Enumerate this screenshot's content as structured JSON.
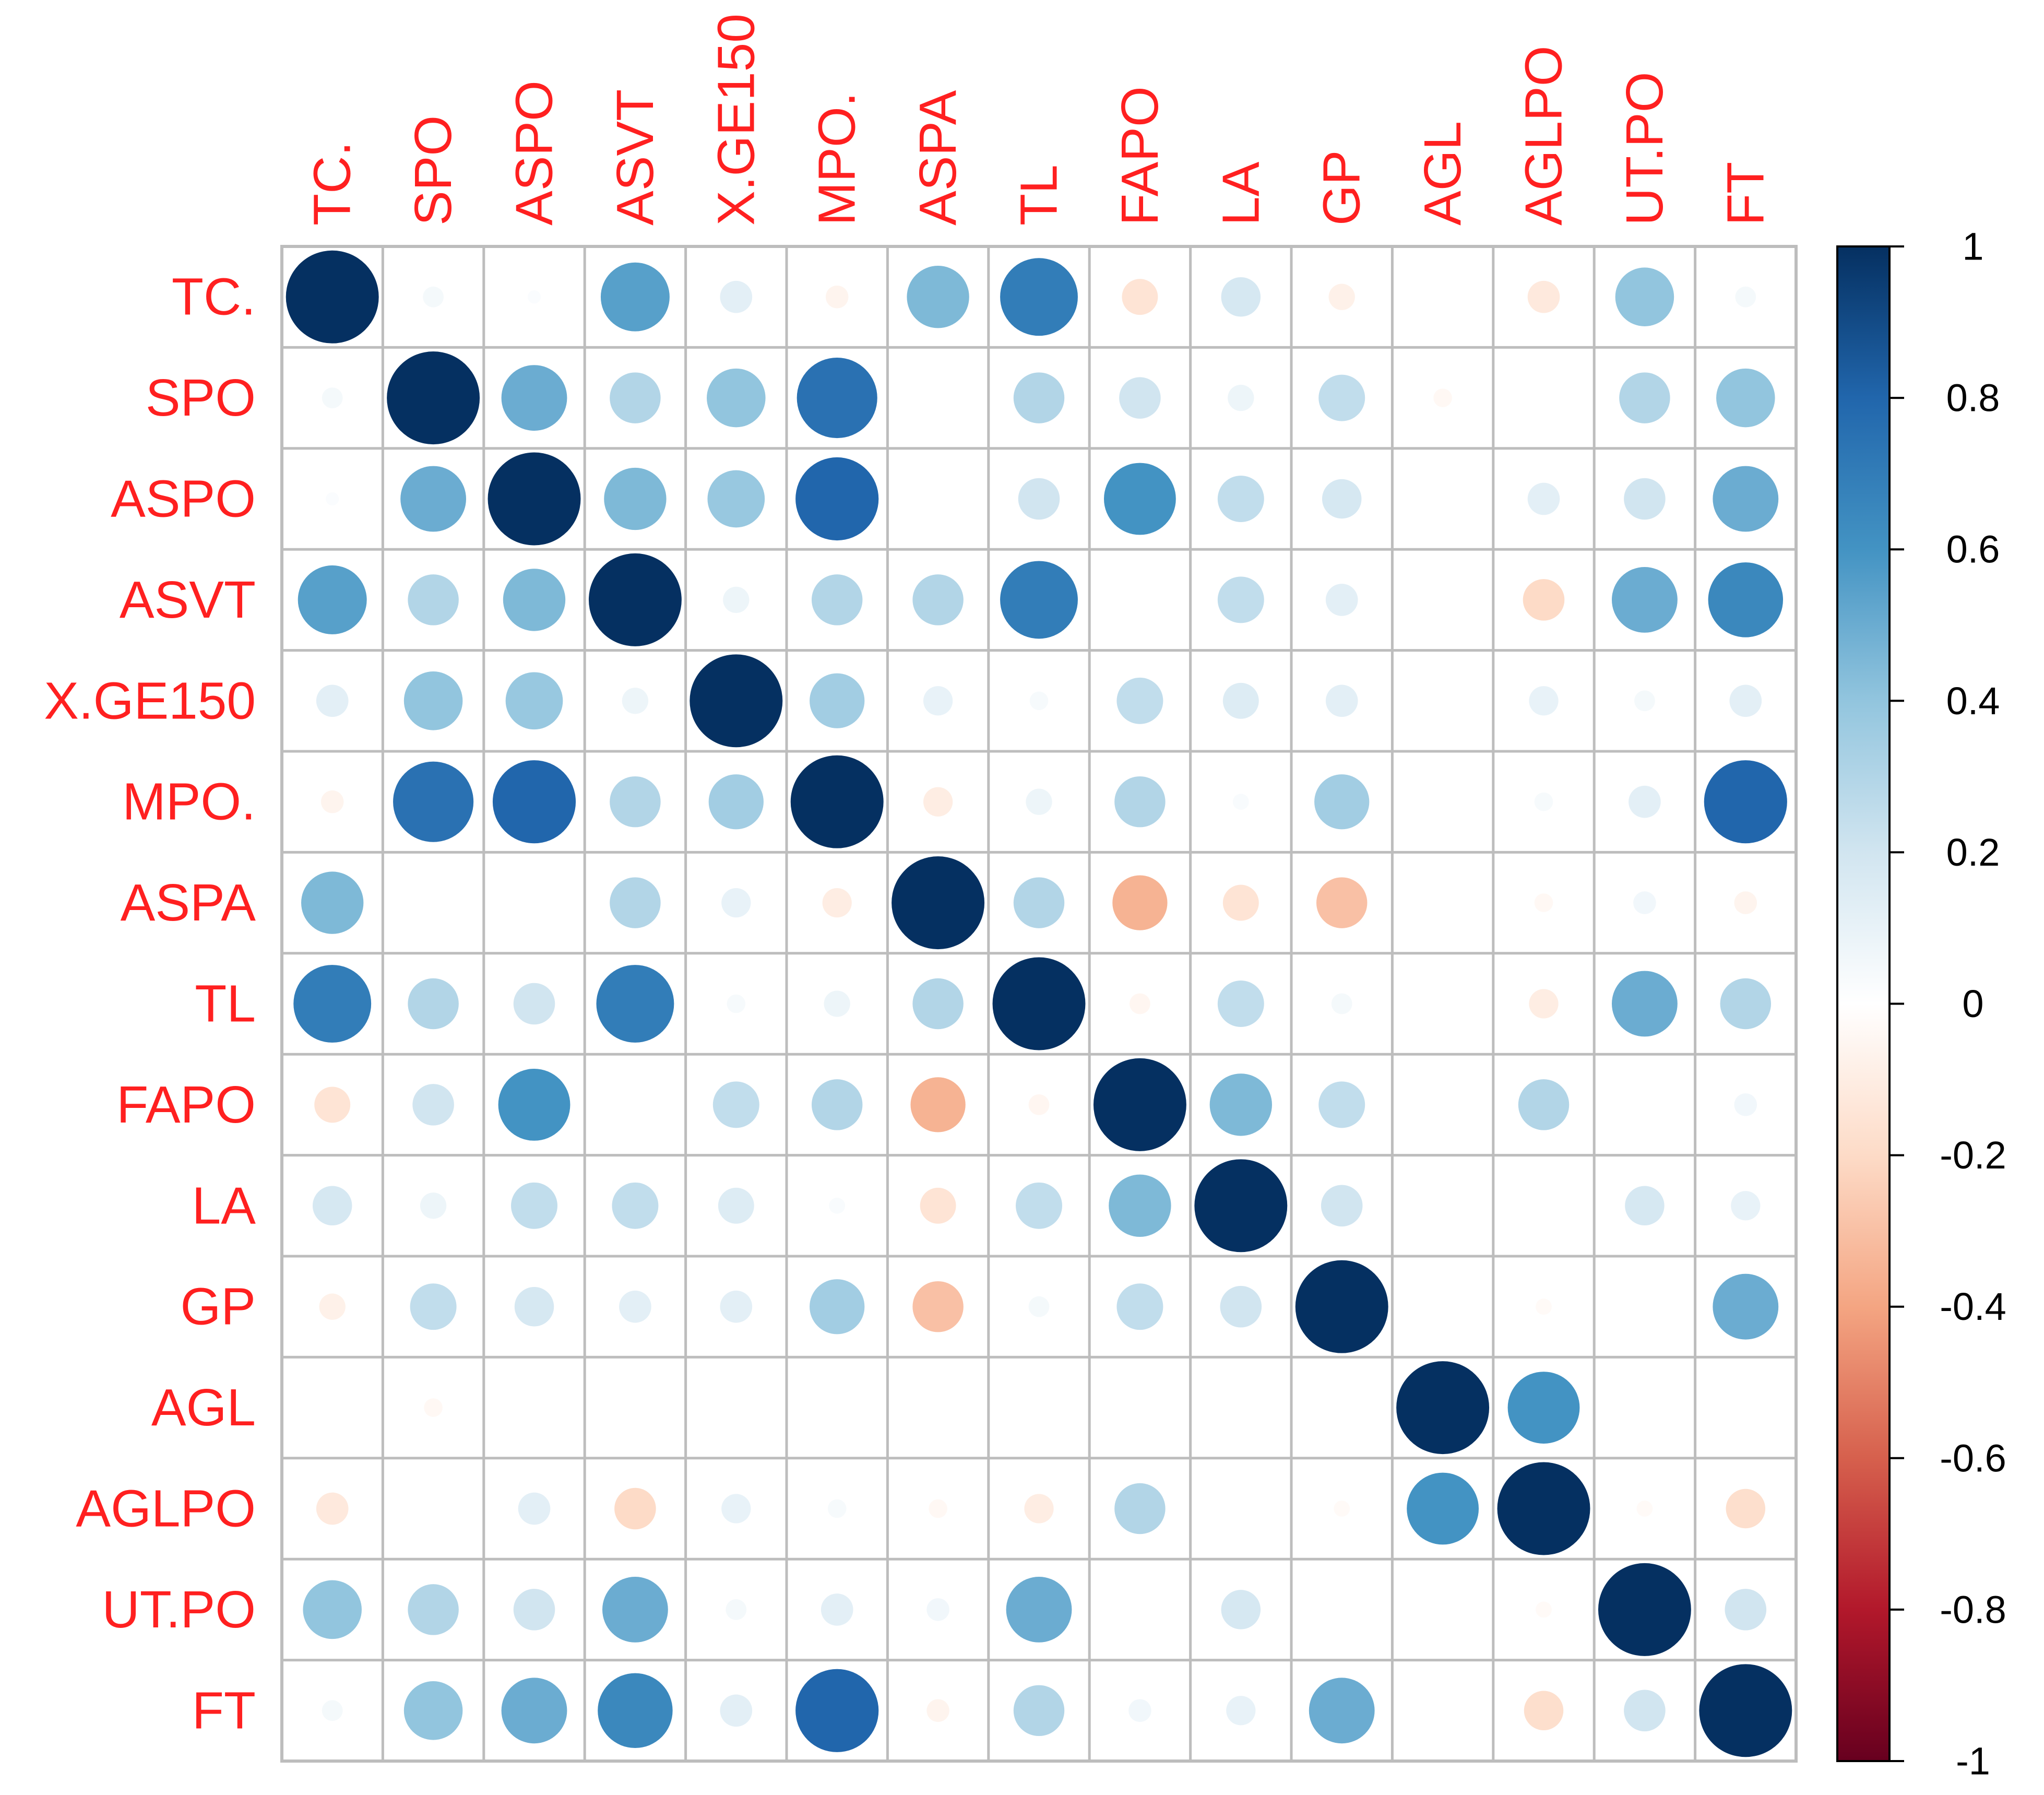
{
  "chart_data": {
    "type": "correlation-matrix",
    "method": "circle",
    "variables": [
      "TC.",
      "SPO",
      "ASPO",
      "ASVT",
      "X.GE150",
      "MPO.",
      "ASPA",
      "TL",
      "FAPO",
      "LA",
      "GP",
      "AGL",
      "AGLPO",
      "UT.PO",
      "FT"
    ],
    "matrix": [
      [
        1.0,
        0.05,
        0.02,
        0.55,
        0.12,
        -0.06,
        0.45,
        0.7,
        -0.15,
        0.18,
        -0.08,
        0.0,
        -0.12,
        0.4,
        0.05
      ],
      [
        0.05,
        1.0,
        0.5,
        0.3,
        0.4,
        0.75,
        0.0,
        0.3,
        0.2,
        0.08,
        0.25,
        -0.04,
        0.0,
        0.3,
        0.4
      ],
      [
        0.02,
        0.5,
        1.0,
        0.45,
        0.38,
        0.8,
        0.0,
        0.2,
        0.6,
        0.25,
        0.18,
        0.0,
        0.12,
        0.2,
        0.5
      ],
      [
        0.55,
        0.3,
        0.45,
        1.0,
        0.08,
        0.3,
        0.3,
        0.7,
        0.0,
        0.25,
        0.12,
        0.0,
        -0.2,
        0.5,
        0.65
      ],
      [
        0.12,
        0.4,
        0.38,
        0.08,
        1.0,
        0.35,
        0.1,
        0.04,
        0.25,
        0.15,
        0.12,
        0.0,
        0.1,
        0.05,
        0.12
      ],
      [
        -0.06,
        0.75,
        0.8,
        0.3,
        0.35,
        1.0,
        -0.1,
        0.08,
        0.3,
        0.03,
        0.35,
        0.0,
        0.04,
        0.12,
        0.8
      ],
      [
        0.45,
        0.0,
        0.0,
        0.3,
        0.1,
        -0.1,
        1.0,
        0.3,
        -0.35,
        -0.15,
        -0.3,
        0.0,
        -0.04,
        0.06,
        -0.06
      ],
      [
        0.7,
        0.3,
        0.2,
        0.7,
        0.04,
        0.08,
        0.3,
        1.0,
        -0.05,
        0.25,
        0.05,
        0.0,
        -0.1,
        0.5,
        0.3
      ],
      [
        -0.15,
        0.2,
        0.6,
        0.0,
        0.25,
        0.3,
        -0.35,
        -0.05,
        1.0,
        0.45,
        0.25,
        0.0,
        0.3,
        0.0,
        0.06
      ],
      [
        0.18,
        0.08,
        0.25,
        0.25,
        0.15,
        0.03,
        -0.15,
        0.25,
        0.45,
        1.0,
        0.2,
        0.0,
        0.0,
        0.18,
        0.1
      ],
      [
        -0.08,
        0.25,
        0.18,
        0.12,
        0.12,
        0.35,
        -0.3,
        0.05,
        0.25,
        0.2,
        1.0,
        0.0,
        -0.03,
        0.0,
        0.5
      ],
      [
        0.0,
        -0.04,
        0.0,
        0.0,
        0.0,
        0.0,
        0.0,
        0.0,
        0.0,
        0.0,
        0.0,
        1.0,
        0.6,
        0.0,
        0.0
      ],
      [
        -0.12,
        0.0,
        0.12,
        -0.2,
        0.1,
        0.04,
        -0.04,
        -0.1,
        0.3,
        0.0,
        -0.03,
        0.6,
        1.0,
        -0.03,
        -0.18
      ],
      [
        0.4,
        0.3,
        0.2,
        0.5,
        0.05,
        0.12,
        0.06,
        0.5,
        0.0,
        0.18,
        0.0,
        0.0,
        -0.03,
        1.0,
        0.2
      ],
      [
        0.05,
        0.4,
        0.5,
        0.65,
        0.12,
        0.8,
        -0.06,
        0.3,
        0.06,
        0.1,
        0.5,
        0.0,
        -0.18,
        0.2,
        1.0
      ]
    ],
    "colorbar": {
      "range": [
        -1,
        1
      ],
      "ticks": [
        1,
        0.8,
        0.6,
        0.4,
        0.2,
        0,
        -0.2,
        -0.4,
        -0.6,
        -0.8,
        -1
      ],
      "tick_labels": [
        "1",
        "0.8",
        "0.6",
        "0.4",
        "0.2",
        "0",
        "-0.2",
        "-0.4",
        "-0.6",
        "-0.8",
        "-1"
      ],
      "colors": [
        "#67001F",
        "#B2182B",
        "#D6604D",
        "#F4A582",
        "#FDDBC7",
        "#FFFFFF",
        "#D1E5F0",
        "#92C5DE",
        "#4393C3",
        "#2166AC",
        "#053061"
      ]
    },
    "label_color": "#FF2020",
    "grid_color": "#BDBDBD"
  }
}
